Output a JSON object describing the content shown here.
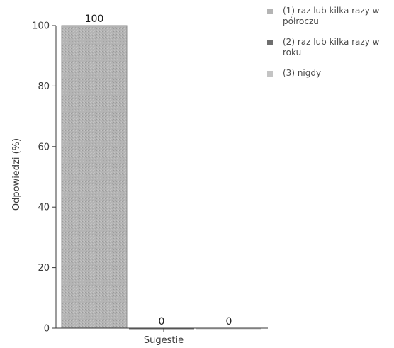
{
  "chart_data": {
    "type": "bar",
    "ylabel": "Odpowiedzi (%)",
    "xlabel": "Sugestie",
    "ylim": [
      0,
      100
    ],
    "yticks": [
      0,
      20,
      40,
      60,
      80,
      100
    ],
    "grid": false,
    "legend_position": "top-right",
    "series": [
      {
        "name": "(1) raz lub kilka razy w półroczu",
        "value": 100,
        "label": "100",
        "color": "#b4b4b4"
      },
      {
        "name": "(2) raz lub kilka razy w roku",
        "value": 0,
        "label": "0",
        "color": "#6e6e6e"
      },
      {
        "name": "(3) nigdy",
        "value": 0,
        "label": "0",
        "color": "#c4c4c4"
      }
    ]
  }
}
